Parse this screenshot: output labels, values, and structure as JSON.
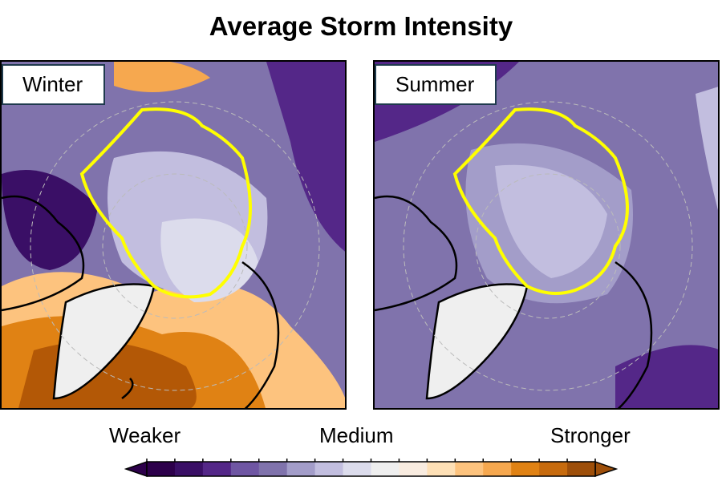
{
  "title": "Average Storm Intensity",
  "panels": [
    {
      "label": "Winter",
      "sea_ice_edge_color": "#ffff00"
    },
    {
      "label": "Summer",
      "sea_ice_edge_color": "#ffff00"
    }
  ],
  "colorbar": {
    "labels": {
      "low": "Weaker",
      "mid": "Medium",
      "high": "Stronger"
    },
    "colors": [
      "#2d004b",
      "#3a0f66",
      "#542788",
      "#6f56a3",
      "#8073ac",
      "#a39dc9",
      "#c2bedf",
      "#dcdcec",
      "#efefef",
      "#f9ece0",
      "#fee0b6",
      "#fdc37e",
      "#f6a84f",
      "#e08214",
      "#c76b0e",
      "#9e4f0a"
    ],
    "extend": "both"
  }
}
